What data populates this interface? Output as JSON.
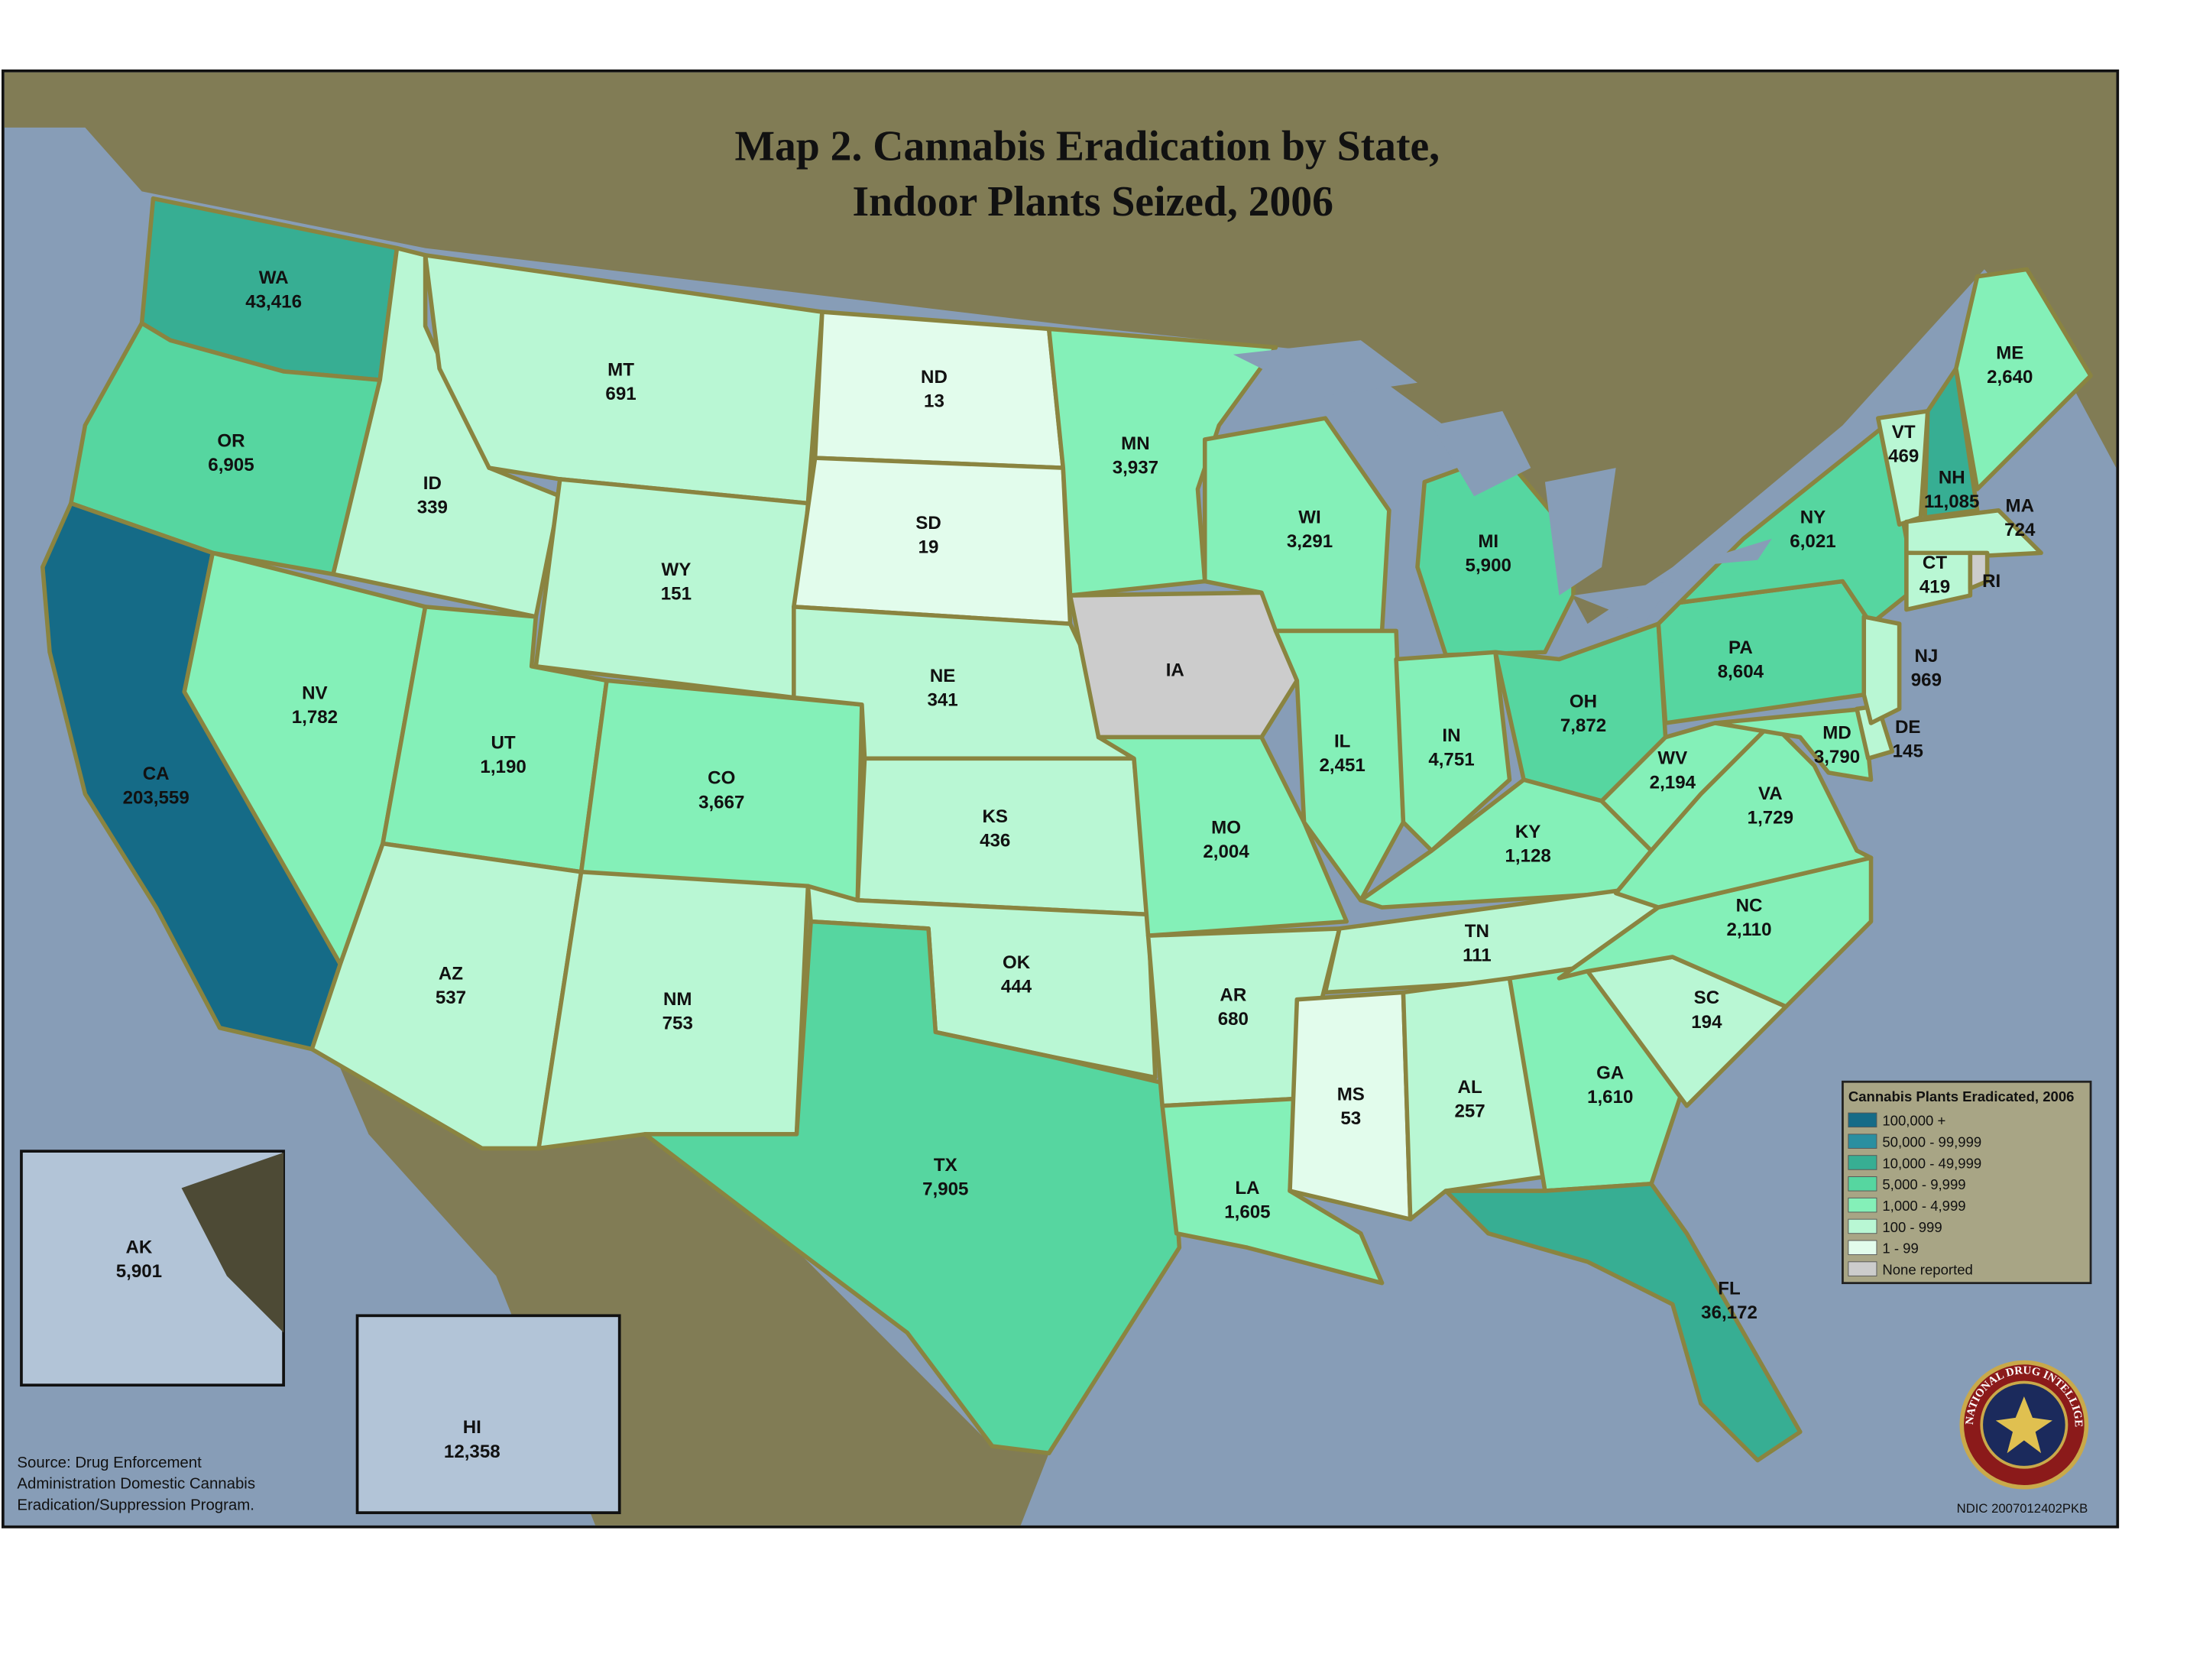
{
  "title": [
    "Map 2. Cannabis Eradication by State,",
    "Indoor Plants Seized, 2006"
  ],
  "states": [
    {
      "abbr": "WA",
      "value": "43,416",
      "color": "#37ae93"
    },
    {
      "abbr": "OR",
      "value": "6,905",
      "color": "#56d6a0"
    },
    {
      "abbr": "CA",
      "value": "203,559",
      "color": "#156b87"
    },
    {
      "abbr": "ID",
      "value": "339",
      "color": "#b9f7d4"
    },
    {
      "abbr": "MT",
      "value": "691",
      "color": "#b9f7d4"
    },
    {
      "abbr": "WY",
      "value": "151",
      "color": "#b9f7d4"
    },
    {
      "abbr": "NV",
      "value": "1,782",
      "color": "#84f0b8"
    },
    {
      "abbr": "UT",
      "value": "1,190",
      "color": "#84f0b8"
    },
    {
      "abbr": "CO",
      "value": "3,667",
      "color": "#84f0b8"
    },
    {
      "abbr": "AZ",
      "value": "537",
      "color": "#b9f7d4"
    },
    {
      "abbr": "NM",
      "value": "753",
      "color": "#b9f7d4"
    },
    {
      "abbr": "ND",
      "value": "13",
      "color": "#e2fcec"
    },
    {
      "abbr": "SD",
      "value": "19",
      "color": "#e2fcec"
    },
    {
      "abbr": "NE",
      "value": "341",
      "color": "#b9f7d4"
    },
    {
      "abbr": "KS",
      "value": "436",
      "color": "#b9f7d4"
    },
    {
      "abbr": "OK",
      "value": "444",
      "color": "#b9f7d4"
    },
    {
      "abbr": "TX",
      "value": "7,905",
      "color": "#56d6a0"
    },
    {
      "abbr": "MN",
      "value": "3,937",
      "color": "#84f0b8"
    },
    {
      "abbr": "IA",
      "color": "#cccccc"
    },
    {
      "abbr": "MO",
      "value": "2,004",
      "color": "#84f0b8"
    },
    {
      "abbr": "AR",
      "value": "680",
      "color": "#b9f7d4"
    },
    {
      "abbr": "LA",
      "value": "1,605",
      "color": "#84f0b8"
    },
    {
      "abbr": "WI",
      "value": "3,291",
      "color": "#84f0b8"
    },
    {
      "abbr": "IL",
      "value": "2,451",
      "color": "#84f0b8"
    },
    {
      "abbr": "MI",
      "value": "5,900",
      "color": "#56d6a0"
    },
    {
      "abbr": "IN",
      "value": "4,751",
      "color": "#84f0b8"
    },
    {
      "abbr": "OH",
      "value": "7,872",
      "color": "#56d6a0"
    },
    {
      "abbr": "KY",
      "value": "1,128",
      "color": "#84f0b8"
    },
    {
      "abbr": "TN",
      "value": "111",
      "color": "#b9f7d4"
    },
    {
      "abbr": "MS",
      "value": "53",
      "color": "#e2fcec"
    },
    {
      "abbr": "AL",
      "value": "257",
      "color": "#b9f7d4"
    },
    {
      "abbr": "GA",
      "value": "1,610",
      "color": "#84f0b8"
    },
    {
      "abbr": "FL",
      "value": "36,172",
      "color": "#37ae93"
    },
    {
      "abbr": "SC",
      "value": "194",
      "color": "#b9f7d4"
    },
    {
      "abbr": "NC",
      "value": "2,110",
      "color": "#84f0b8"
    },
    {
      "abbr": "VA",
      "value": "1,729",
      "color": "#84f0b8"
    },
    {
      "abbr": "WV",
      "value": "2,194",
      "color": "#84f0b8"
    },
    {
      "abbr": "PA",
      "value": "8,604",
      "color": "#56d6a0"
    },
    {
      "abbr": "NY",
      "value": "6,021",
      "color": "#56d6a0"
    },
    {
      "abbr": "MD",
      "value": "3,790",
      "color": "#84f0b8"
    },
    {
      "abbr": "DE",
      "value": "145",
      "color": "#b9f7d4"
    },
    {
      "abbr": "NJ",
      "value": "969",
      "color": "#b9f7d4"
    },
    {
      "abbr": "VT",
      "value": "469",
      "color": "#b9f7d4"
    },
    {
      "abbr": "NH",
      "value": "11,085",
      "color": "#37ae93"
    },
    {
      "abbr": "ME",
      "value": "2,640",
      "color": "#84f0b8"
    },
    {
      "abbr": "MA",
      "value": "724",
      "color": "#b9f7d4"
    },
    {
      "abbr": "CT",
      "value": "419",
      "color": "#b9f7d4"
    },
    {
      "abbr": "RI",
      "color": "#cccccc"
    },
    {
      "abbr": "AK",
      "value": "5,901",
      "color": "#56d6a0"
    },
    {
      "abbr": "HI",
      "value": "12,358",
      "color": "#37ae93"
    }
  ],
  "legend": {
    "title": "Cannabis Plants Eradicated, 2006",
    "items": [
      {
        "label": "100,000 +",
        "color": "#156b87"
      },
      {
        "label": "50,000 - 99,999",
        "color": "#2a8fa0"
      },
      {
        "label": "10,000 - 49,999",
        "color": "#37ae93"
      },
      {
        "label": "5,000 - 9,999",
        "color": "#56d6a0"
      },
      {
        "label": "1,000 - 4,999",
        "color": "#84f0b8"
      },
      {
        "label": "100 - 999",
        "color": "#b9f7d4"
      },
      {
        "label": "1 - 99",
        "color": "#e2fcec"
      },
      {
        "label": "None reported",
        "color": "#cccccc"
      }
    ]
  },
  "source": [
    "Source: Drug Enforcement",
    "Administration Domestic Cannabis",
    "Eradication/Suppression Program."
  ],
  "seal": "NATIONAL DRUG INTELLIGENCE CENTER",
  "code": "NDIC 2007012402PKB"
}
